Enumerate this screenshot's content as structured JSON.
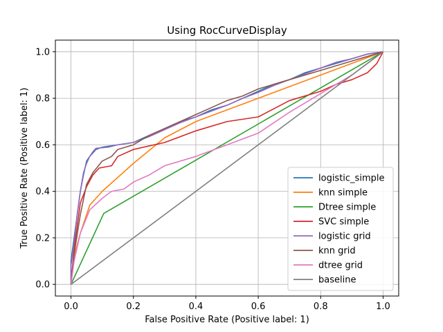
{
  "chart_data": {
    "type": "line",
    "title": "Using RocCurveDisplay",
    "xlabel": "False Positive Rate (Positive label: 1)",
    "ylabel": "True Positive Rate (Positive label: 1)",
    "xlim": [
      -0.05,
      1.05
    ],
    "ylim": [
      -0.05,
      1.05
    ],
    "xticks": [
      0.0,
      0.2,
      0.4,
      0.6,
      0.8,
      1.0
    ],
    "yticks": [
      0.0,
      0.2,
      0.4,
      0.6,
      0.8,
      1.0
    ],
    "xtick_labels": [
      "0.0",
      "0.2",
      "0.4",
      "0.6",
      "0.8",
      "1.0"
    ],
    "ytick_labels": [
      "0.0",
      "0.2",
      "0.4",
      "0.6",
      "0.8",
      "1.0"
    ],
    "grid": true,
    "legend": "lower-right",
    "series": [
      {
        "name": "logistic_simple",
        "color": "#1f77b4",
        "points": [
          [
            0,
            0
          ],
          [
            0,
            0.1
          ],
          [
            0.01,
            0.2
          ],
          [
            0.02,
            0.3
          ],
          [
            0.03,
            0.4
          ],
          [
            0.04,
            0.47
          ],
          [
            0.05,
            0.53
          ],
          [
            0.06,
            0.55
          ],
          [
            0.08,
            0.58
          ],
          [
            0.1,
            0.59
          ],
          [
            0.15,
            0.6
          ],
          [
            0.2,
            0.61
          ],
          [
            0.25,
            0.64
          ],
          [
            0.3,
            0.67
          ],
          [
            0.35,
            0.7
          ],
          [
            0.4,
            0.72
          ],
          [
            0.45,
            0.75
          ],
          [
            0.5,
            0.77
          ],
          [
            0.55,
            0.8
          ],
          [
            0.6,
            0.83
          ],
          [
            0.65,
            0.86
          ],
          [
            0.7,
            0.88
          ],
          [
            0.75,
            0.91
          ],
          [
            0.8,
            0.93
          ],
          [
            0.85,
            0.95
          ],
          [
            0.9,
            0.97
          ],
          [
            0.95,
            0.99
          ],
          [
            1,
            1
          ]
        ]
      },
      {
        "name": "knn simple",
        "color": "#ff7f0e",
        "points": [
          [
            0,
            0
          ],
          [
            0.01,
            0.12
          ],
          [
            0.03,
            0.22
          ],
          [
            0.06,
            0.34
          ],
          [
            0.1,
            0.4
          ],
          [
            0.2,
            0.52
          ],
          [
            0.3,
            0.63
          ],
          [
            0.4,
            0.7
          ],
          [
            0.5,
            0.75
          ],
          [
            0.6,
            0.8
          ],
          [
            0.7,
            0.85
          ],
          [
            0.8,
            0.9
          ],
          [
            0.9,
            0.95
          ],
          [
            1,
            1
          ]
        ]
      },
      {
        "name": "Dtree simple",
        "color": "#2ca02c",
        "points": [
          [
            0,
            0
          ],
          [
            0.105,
            0.305
          ],
          [
            1,
            1
          ]
        ]
      },
      {
        "name": "SVC simple",
        "color": "#d62728",
        "points": [
          [
            0,
            0
          ],
          [
            0.01,
            0.15
          ],
          [
            0.02,
            0.25
          ],
          [
            0.03,
            0.35
          ],
          [
            0.05,
            0.42
          ],
          [
            0.07,
            0.47
          ],
          [
            0.09,
            0.5
          ],
          [
            0.13,
            0.51
          ],
          [
            0.15,
            0.55
          ],
          [
            0.2,
            0.58
          ],
          [
            0.3,
            0.61
          ],
          [
            0.4,
            0.66
          ],
          [
            0.5,
            0.7
          ],
          [
            0.6,
            0.72
          ],
          [
            0.7,
            0.79
          ],
          [
            0.8,
            0.83
          ],
          [
            0.85,
            0.86
          ],
          [
            0.9,
            0.88
          ],
          [
            0.95,
            0.91
          ],
          [
            0.98,
            0.95
          ],
          [
            1,
            1
          ]
        ]
      },
      {
        "name": "logistic grid",
        "color": "#9467bd",
        "points": [
          [
            0,
            0
          ],
          [
            0,
            0.08
          ],
          [
            0.01,
            0.18
          ],
          [
            0.02,
            0.3
          ],
          [
            0.03,
            0.4
          ],
          [
            0.04,
            0.48
          ],
          [
            0.05,
            0.52
          ],
          [
            0.06,
            0.55
          ],
          [
            0.07,
            0.57
          ],
          [
            0.08,
            0.585
          ],
          [
            0.12,
            0.59
          ],
          [
            0.15,
            0.6
          ],
          [
            0.2,
            0.61
          ],
          [
            0.25,
            0.635
          ],
          [
            0.3,
            0.665
          ],
          [
            0.35,
            0.695
          ],
          [
            0.4,
            0.72
          ],
          [
            0.45,
            0.745
          ],
          [
            0.5,
            0.77
          ],
          [
            0.55,
            0.8
          ],
          [
            0.6,
            0.825
          ],
          [
            0.65,
            0.855
          ],
          [
            0.7,
            0.88
          ],
          [
            0.75,
            0.905
          ],
          [
            0.8,
            0.93
          ],
          [
            0.85,
            0.955
          ],
          [
            0.9,
            0.97
          ],
          [
            0.95,
            0.99
          ],
          [
            1,
            1
          ]
        ]
      },
      {
        "name": "knn grid",
        "color": "#8c564b",
        "points": [
          [
            0,
            0
          ],
          [
            0.01,
            0.13
          ],
          [
            0.03,
            0.3
          ],
          [
            0.05,
            0.43
          ],
          [
            0.07,
            0.48
          ],
          [
            0.1,
            0.53
          ],
          [
            0.13,
            0.55
          ],
          [
            0.15,
            0.58
          ],
          [
            0.2,
            0.6
          ],
          [
            0.25,
            0.64
          ],
          [
            0.3,
            0.67
          ],
          [
            0.35,
            0.7
          ],
          [
            0.4,
            0.73
          ],
          [
            0.45,
            0.76
          ],
          [
            0.5,
            0.79
          ],
          [
            0.55,
            0.81
          ],
          [
            0.6,
            0.84
          ],
          [
            0.65,
            0.86
          ],
          [
            0.7,
            0.88
          ],
          [
            0.75,
            0.9
          ],
          [
            0.8,
            0.92
          ],
          [
            0.85,
            0.94
          ],
          [
            0.9,
            0.96
          ],
          [
            0.95,
            0.98
          ],
          [
            1,
            1
          ]
        ]
      },
      {
        "name": "dtree grid",
        "color": "#e377c2",
        "points": [
          [
            0,
            0
          ],
          [
            0.01,
            0.1
          ],
          [
            0.03,
            0.22
          ],
          [
            0.06,
            0.32
          ],
          [
            0.1,
            0.37
          ],
          [
            0.13,
            0.4
          ],
          [
            0.17,
            0.41
          ],
          [
            0.2,
            0.44
          ],
          [
            0.25,
            0.47
          ],
          [
            0.3,
            0.51
          ],
          [
            0.4,
            0.55
          ],
          [
            0.5,
            0.6
          ],
          [
            0.6,
            0.65
          ],
          [
            0.7,
            0.74
          ],
          [
            0.8,
            0.82
          ],
          [
            0.9,
            0.9
          ],
          [
            1,
            1
          ]
        ]
      },
      {
        "name": "baseline",
        "color": "#7f7f7f",
        "points": [
          [
            0,
            0
          ],
          [
            1,
            1
          ]
        ]
      }
    ]
  }
}
